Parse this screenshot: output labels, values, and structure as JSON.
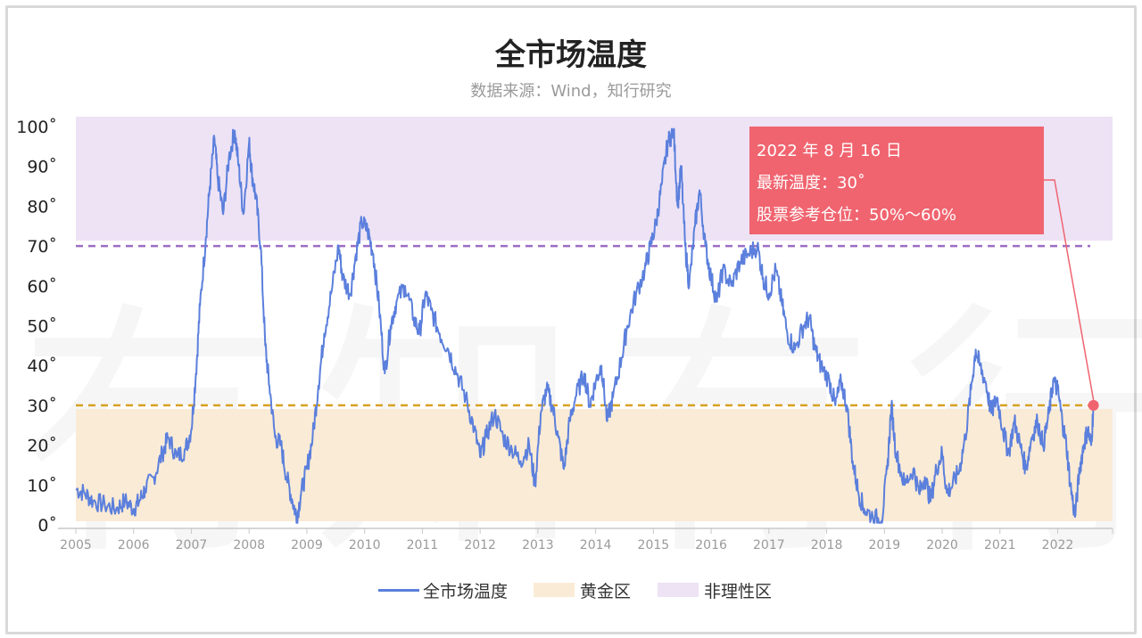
{
  "title": "全市场温度",
  "subtitle": "数据来源：Wind，知行研究",
  "watermark": "有知有行",
  "tooltip": {
    "date": "2022 年 8 月 16 日",
    "temperature": "最新温度：30˚",
    "position": "股票参考仓位：50%～60%"
  },
  "legend": [
    {
      "label": "全市场温度",
      "color": "#5b7fdc",
      "kind": "line"
    },
    {
      "label": "黄金区",
      "color": "#faebd6",
      "kind": "box"
    },
    {
      "label": "非理性区",
      "color": "#ede3f5",
      "kind": "box"
    }
  ],
  "colors": {
    "line": "#5b7fdc",
    "golden_zone": "#faebd6",
    "irrational_zone": "#ede3f5",
    "threshold_70": "#9c6dc4",
    "threshold_30": "#d9a022",
    "latest_marker": "#f0646f"
  },
  "chart_data": {
    "type": "line",
    "title": "全市场温度",
    "subtitle": "数据来源：Wind，知行研究",
    "ylim": [
      0,
      100
    ],
    "y_ticks": [
      "0˚",
      "10˚",
      "20˚",
      "30˚",
      "40˚",
      "50˚",
      "60˚",
      "70˚",
      "80˚",
      "90˚",
      "100˚"
    ],
    "x_ticks": [
      "2005",
      "2006",
      "2007",
      "2008",
      "2009",
      "2010",
      "2011",
      "2012",
      "2013",
      "2014",
      "2015",
      "2016",
      "2017",
      "2018",
      "2019",
      "2020",
      "2021",
      "2022"
    ],
    "xlim": [
      2005.0,
      2022.95
    ],
    "zones": [
      {
        "name": "黄金区",
        "from": 0,
        "to": 30
      },
      {
        "name": "非理性区",
        "from": 70,
        "to": 100
      }
    ],
    "thresholds": [
      70,
      30
    ],
    "latest": {
      "x": 2022.62,
      "y": 30
    },
    "series": [
      {
        "name": "全市场温度",
        "points": [
          [
            2005.0,
            9
          ],
          [
            2005.15,
            8
          ],
          [
            2005.3,
            6
          ],
          [
            2005.5,
            5
          ],
          [
            2005.7,
            4
          ],
          [
            2005.85,
            6
          ],
          [
            2006.0,
            4
          ],
          [
            2006.1,
            6
          ],
          [
            2006.2,
            9
          ],
          [
            2006.35,
            12
          ],
          [
            2006.5,
            18
          ],
          [
            2006.6,
            22
          ],
          [
            2006.75,
            17
          ],
          [
            2006.9,
            19
          ],
          [
            2007.0,
            24
          ],
          [
            2007.08,
            38
          ],
          [
            2007.15,
            55
          ],
          [
            2007.25,
            72
          ],
          [
            2007.32,
            85
          ],
          [
            2007.4,
            97
          ],
          [
            2007.45,
            88
          ],
          [
            2007.55,
            78
          ],
          [
            2007.65,
            92
          ],
          [
            2007.75,
            99
          ],
          [
            2007.82,
            90
          ],
          [
            2007.9,
            78
          ],
          [
            2008.0,
            96
          ],
          [
            2008.05,
            88
          ],
          [
            2008.12,
            82
          ],
          [
            2008.2,
            70
          ],
          [
            2008.28,
            45
          ],
          [
            2008.35,
            35
          ],
          [
            2008.45,
            22
          ],
          [
            2008.55,
            20
          ],
          [
            2008.65,
            12
          ],
          [
            2008.75,
            6
          ],
          [
            2008.83,
            2
          ],
          [
            2008.9,
            8
          ],
          [
            2009.0,
            14
          ],
          [
            2009.1,
            22
          ],
          [
            2009.2,
            35
          ],
          [
            2009.3,
            48
          ],
          [
            2009.42,
            58
          ],
          [
            2009.55,
            70
          ],
          [
            2009.62,
            62
          ],
          [
            2009.75,
            58
          ],
          [
            2009.85,
            68
          ],
          [
            2009.95,
            76
          ],
          [
            2010.05,
            74
          ],
          [
            2010.15,
            68
          ],
          [
            2010.25,
            55
          ],
          [
            2010.35,
            38
          ],
          [
            2010.45,
            50
          ],
          [
            2010.55,
            56
          ],
          [
            2010.7,
            60
          ],
          [
            2010.85,
            52
          ],
          [
            2010.95,
            48
          ],
          [
            2011.05,
            58
          ],
          [
            2011.15,
            54
          ],
          [
            2011.3,
            48
          ],
          [
            2011.45,
            44
          ],
          [
            2011.6,
            38
          ],
          [
            2011.75,
            32
          ],
          [
            2011.9,
            24
          ],
          [
            2012.0,
            17
          ],
          [
            2012.1,
            22
          ],
          [
            2012.25,
            28
          ],
          [
            2012.4,
            22
          ],
          [
            2012.55,
            19
          ],
          [
            2012.7,
            16
          ],
          [
            2012.85,
            20
          ],
          [
            2012.95,
            10
          ],
          [
            2013.05,
            28
          ],
          [
            2013.15,
            34
          ],
          [
            2013.25,
            30
          ],
          [
            2013.35,
            22
          ],
          [
            2013.45,
            14
          ],
          [
            2013.55,
            26
          ],
          [
            2013.65,
            32
          ],
          [
            2013.8,
            38
          ],
          [
            2013.9,
            30
          ],
          [
            2014.0,
            36
          ],
          [
            2014.1,
            40
          ],
          [
            2014.2,
            26
          ],
          [
            2014.3,
            32
          ],
          [
            2014.45,
            42
          ],
          [
            2014.55,
            50
          ],
          [
            2014.7,
            58
          ],
          [
            2014.85,
            64
          ],
          [
            2014.95,
            70
          ],
          [
            2015.05,
            76
          ],
          [
            2015.15,
            86
          ],
          [
            2015.25,
            96
          ],
          [
            2015.35,
            99
          ],
          [
            2015.42,
            80
          ],
          [
            2015.48,
            90
          ],
          [
            2015.55,
            70
          ],
          [
            2015.62,
            60
          ],
          [
            2015.72,
            75
          ],
          [
            2015.8,
            84
          ],
          [
            2015.9,
            70
          ],
          [
            2016.0,
            62
          ],
          [
            2016.1,
            56
          ],
          [
            2016.2,
            64
          ],
          [
            2016.35,
            60
          ],
          [
            2016.5,
            66
          ],
          [
            2016.65,
            68
          ],
          [
            2016.8,
            70
          ],
          [
            2016.9,
            62
          ],
          [
            2017.0,
            58
          ],
          [
            2017.12,
            64
          ],
          [
            2017.22,
            56
          ],
          [
            2017.32,
            48
          ],
          [
            2017.45,
            44
          ],
          [
            2017.6,
            50
          ],
          [
            2017.7,
            52
          ],
          [
            2017.8,
            44
          ],
          [
            2017.9,
            40
          ],
          [
            2018.05,
            36
          ],
          [
            2018.15,
            30
          ],
          [
            2018.25,
            36
          ],
          [
            2018.35,
            30
          ],
          [
            2018.45,
            16
          ],
          [
            2018.55,
            8
          ],
          [
            2018.65,
            4
          ],
          [
            2018.8,
            2
          ],
          [
            2018.95,
            1
          ],
          [
            2019.05,
            14
          ],
          [
            2019.12,
            30
          ],
          [
            2019.2,
            18
          ],
          [
            2019.35,
            10
          ],
          [
            2019.5,
            14
          ],
          [
            2019.6,
            8
          ],
          [
            2019.7,
            12
          ],
          [
            2019.8,
            6
          ],
          [
            2019.9,
            14
          ],
          [
            2020.0,
            18
          ],
          [
            2020.08,
            8
          ],
          [
            2020.18,
            10
          ],
          [
            2020.3,
            14
          ],
          [
            2020.4,
            22
          ],
          [
            2020.5,
            34
          ],
          [
            2020.58,
            44
          ],
          [
            2020.65,
            40
          ],
          [
            2020.75,
            36
          ],
          [
            2020.85,
            28
          ],
          [
            2020.95,
            32
          ],
          [
            2021.05,
            24
          ],
          [
            2021.15,
            18
          ],
          [
            2021.25,
            26
          ],
          [
            2021.35,
            20
          ],
          [
            2021.45,
            14
          ],
          [
            2021.55,
            22
          ],
          [
            2021.65,
            26
          ],
          [
            2021.75,
            20
          ],
          [
            2021.85,
            28
          ],
          [
            2021.92,
            36
          ],
          [
            2022.0,
            34
          ],
          [
            2022.08,
            26
          ],
          [
            2022.15,
            20
          ],
          [
            2022.22,
            10
          ],
          [
            2022.3,
            2
          ],
          [
            2022.38,
            14
          ],
          [
            2022.45,
            20
          ],
          [
            2022.52,
            24
          ],
          [
            2022.58,
            20
          ],
          [
            2022.62,
            30
          ]
        ]
      }
    ]
  }
}
